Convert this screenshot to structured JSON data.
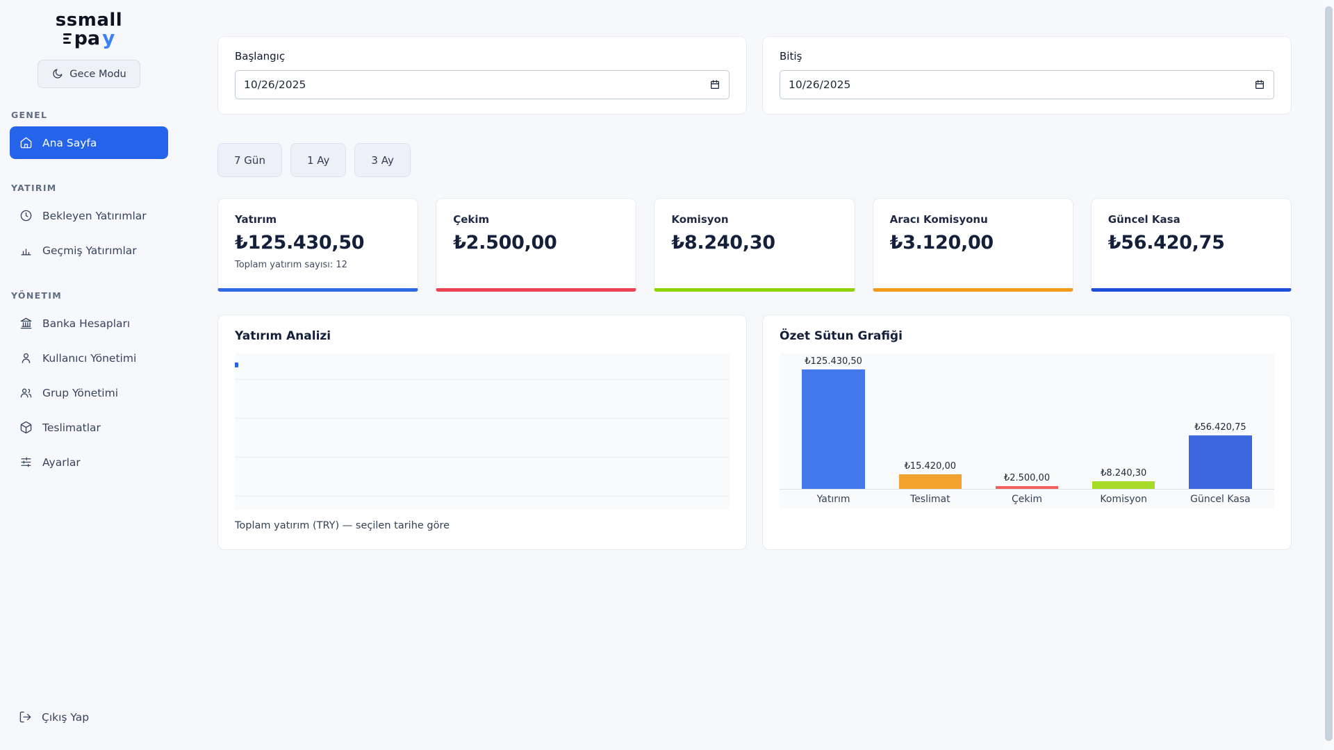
{
  "theme": {
    "accent": "#2563eb",
    "page_bg": "#f7f8fb"
  },
  "brand": {
    "name_top": "ssmall",
    "name_bottom": "pa",
    "name_bottom_accent": "y"
  },
  "sidebar": {
    "night_mode_label": "Gece Modu",
    "sections": [
      {
        "title": "GENEL",
        "items": [
          {
            "label": "Ana Sayfa",
            "icon": "home-icon",
            "active": true
          }
        ]
      },
      {
        "title": "YATIRIM",
        "items": [
          {
            "label": "Bekleyen Yatırımlar",
            "icon": "clock-icon"
          },
          {
            "label": "Geçmiş Yatırımlar",
            "icon": "bar-chart-icon"
          }
        ]
      },
      {
        "title": "YÖNETIM",
        "items": [
          {
            "label": "Banka Hesapları",
            "icon": "bank-icon"
          },
          {
            "label": "Kullanıcı Yönetimi",
            "icon": "user-icon"
          },
          {
            "label": "Grup Yönetimi",
            "icon": "users-icon"
          },
          {
            "label": "Teslimatlar",
            "icon": "package-icon"
          },
          {
            "label": "Ayarlar",
            "icon": "sliders-icon"
          }
        ]
      }
    ],
    "logout_label": "Çıkış Yap"
  },
  "filters": {
    "start_label": "Başlangıç",
    "start_value": "10/26/2025",
    "end_label": "Bitiş",
    "end_value": "10/26/2025",
    "quick_ranges": [
      "7 Gün",
      "1 Ay",
      "3 Ay"
    ]
  },
  "stats": [
    {
      "title": "Yatırım",
      "value": "₺125.430,50",
      "subtitle": "Toplam yatırım sayısı: 12",
      "accent": "#2e6ae8"
    },
    {
      "title": "Çekim",
      "value": "₺2.500,00",
      "accent": "#ea4352"
    },
    {
      "title": "Komisyon",
      "value": "₺8.240,30",
      "accent": "#8ed300"
    },
    {
      "title": "Aracı Komisyonu",
      "value": "₺3.120,00",
      "accent": "#f29b19"
    },
    {
      "title": "Güncel Kasa",
      "value": "₺56.420,75",
      "accent": "#1d4ed8"
    }
  ],
  "charts": {
    "line": {
      "title": "Yatırım Analizi",
      "caption": "Toplam yatırım (TRY) — seçilen tarihe göre",
      "point_color": "#2563eb",
      "points": [
        {
          "x": "10/26/2025",
          "y": 125430.5
        }
      ]
    },
    "bar": {
      "title": "Özet Sütun Grafiği",
      "type": "bar",
      "categories": [
        "Yatırım",
        "Teslimat",
        "Çekim",
        "Komisyon",
        "Güncel Kasa"
      ],
      "values": [
        125430.5,
        15420.0,
        2500.0,
        8240.3,
        56420.75
      ],
      "value_labels": [
        "₺125.430,50",
        "₺15.420,00",
        "₺2.500,00",
        "₺8.240,30",
        "₺56.420,75"
      ],
      "colors": [
        "#4479ec",
        "#f2a32f",
        "#f2605e",
        "#a8da28",
        "#3c68dd"
      ]
    }
  }
}
